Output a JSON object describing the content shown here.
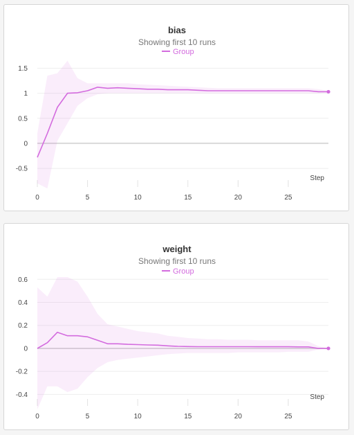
{
  "chart_data": [
    {
      "type": "line",
      "title": "bias",
      "subtitle": "Showing first 10 runs",
      "xlabel": "Step",
      "ylabel": "",
      "xlim": [
        0,
        29
      ],
      "ylim": [
        -0.9,
        1.7
      ],
      "xticks": [
        0,
        5,
        10,
        15,
        20,
        25
      ],
      "yticks": [
        -0.5,
        0,
        0.5,
        1,
        1.5
      ],
      "ytick_labels": [
        "-0.5",
        "0",
        "0.5",
        "1",
        "1.5"
      ],
      "legend": "top-center",
      "series": [
        {
          "name": "Group",
          "color": "#d36bde",
          "x": [
            0,
            1,
            2,
            3,
            4,
            5,
            6,
            7,
            8,
            9,
            10,
            11,
            12,
            13,
            14,
            15,
            16,
            17,
            18,
            19,
            20,
            21,
            22,
            23,
            24,
            25,
            26,
            27,
            28,
            29
          ],
          "values": [
            -0.28,
            0.2,
            0.72,
            1.0,
            1.01,
            1.05,
            1.12,
            1.1,
            1.11,
            1.1,
            1.09,
            1.08,
            1.08,
            1.07,
            1.07,
            1.07,
            1.06,
            1.05,
            1.05,
            1.05,
            1.05,
            1.05,
            1.05,
            1.05,
            1.05,
            1.05,
            1.05,
            1.05,
            1.03,
            1.03
          ],
          "min": [
            -0.8,
            -0.9,
            0.05,
            0.4,
            0.75,
            0.9,
            0.98,
            1.0,
            1.0,
            1.0,
            1.0,
            1.0,
            1.0,
            1.0,
            1.0,
            1.0,
            1.0,
            1.0,
            1.0,
            1.0,
            1.0,
            1.0,
            1.0,
            1.0,
            1.0,
            1.0,
            1.0,
            1.0,
            1.0,
            1.02
          ],
          "max": [
            0.2,
            1.35,
            1.4,
            1.65,
            1.3,
            1.2,
            1.2,
            1.2,
            1.2,
            1.2,
            1.18,
            1.17,
            1.16,
            1.15,
            1.14,
            1.13,
            1.12,
            1.11,
            1.1,
            1.1,
            1.1,
            1.1,
            1.1,
            1.1,
            1.1,
            1.1,
            1.1,
            1.1,
            1.08,
            1.05
          ]
        }
      ]
    },
    {
      "type": "line",
      "title": "weight",
      "subtitle": "Showing first 10 runs",
      "xlabel": "Step",
      "ylabel": "",
      "xlim": [
        0,
        29
      ],
      "ylim": [
        -0.5,
        0.65
      ],
      "xticks": [
        0,
        5,
        10,
        15,
        20,
        25
      ],
      "yticks": [
        -0.4,
        -0.2,
        0,
        0.2,
        0.4,
        0.6
      ],
      "ytick_labels": [
        "-0.4",
        "-0.2",
        "0",
        "0.2",
        "0.4",
        "0.6"
      ],
      "legend": "top-center",
      "series": [
        {
          "name": "Group",
          "color": "#d36bde",
          "x": [
            0,
            1,
            2,
            3,
            4,
            5,
            6,
            7,
            8,
            9,
            10,
            11,
            12,
            13,
            14,
            15,
            16,
            17,
            18,
            19,
            20,
            21,
            22,
            23,
            24,
            25,
            26,
            27,
            28,
            29
          ],
          "values": [
            0.0,
            0.05,
            0.14,
            0.11,
            0.11,
            0.1,
            0.07,
            0.04,
            0.04,
            0.035,
            0.033,
            0.03,
            0.028,
            0.022,
            0.018,
            0.016,
            0.015,
            0.015,
            0.015,
            0.015,
            0.015,
            0.015,
            0.014,
            0.014,
            0.014,
            0.014,
            0.013,
            0.013,
            0.0,
            0.0
          ],
          "min": [
            -0.53,
            -0.33,
            -0.33,
            -0.38,
            -0.35,
            -0.25,
            -0.17,
            -0.12,
            -0.1,
            -0.09,
            -0.08,
            -0.07,
            -0.06,
            -0.05,
            -0.045,
            -0.04,
            -0.04,
            -0.04,
            -0.04,
            -0.04,
            -0.035,
            -0.035,
            -0.035,
            -0.035,
            -0.035,
            -0.03,
            -0.03,
            -0.03,
            -0.01,
            0.0
          ],
          "max": [
            0.53,
            0.45,
            0.62,
            0.62,
            0.58,
            0.45,
            0.3,
            0.21,
            0.19,
            0.17,
            0.15,
            0.14,
            0.13,
            0.11,
            0.1,
            0.09,
            0.085,
            0.08,
            0.08,
            0.075,
            0.075,
            0.075,
            0.07,
            0.07,
            0.07,
            0.07,
            0.07,
            0.06,
            0.02,
            0.0
          ]
        }
      ]
    }
  ]
}
